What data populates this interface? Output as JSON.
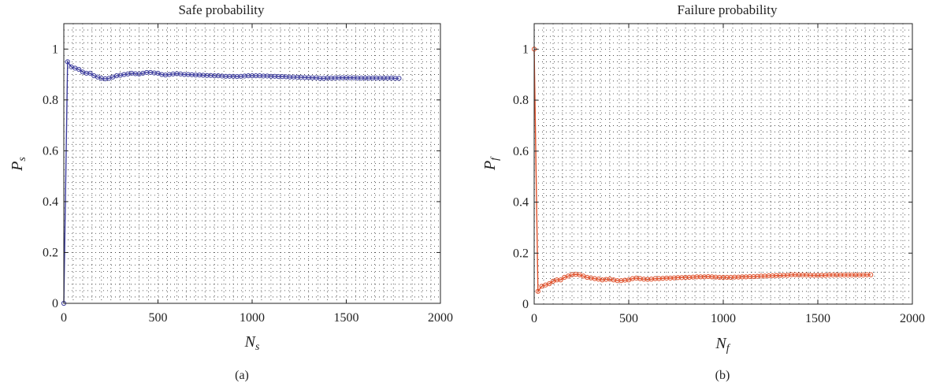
{
  "chart_data": [
    {
      "type": "line",
      "title": "Safe probability",
      "xlabel": "N",
      "xlabel_sub": "s",
      "ylabel": "P",
      "ylabel_sub": "s",
      "caption": "(a)",
      "xlim": [
        0,
        2000
      ],
      "ylim": [
        0,
        1.1
      ],
      "xticks": [
        0,
        500,
        1000,
        1500,
        2000
      ],
      "yticks": [
        0,
        0.2,
        0.4,
        0.6,
        0.8,
        1
      ],
      "grid": true,
      "marker": "circle",
      "color": "#3d3d9e",
      "series": [
        {
          "x": [
            0,
            20,
            40,
            60,
            80,
            100,
            120,
            140,
            160,
            180,
            200,
            220,
            240,
            260,
            280,
            300,
            320,
            340,
            360,
            380,
            400,
            420,
            440,
            460,
            480,
            500,
            520,
            540,
            560,
            580,
            600,
            620,
            640,
            660,
            680,
            700,
            720,
            740,
            760,
            780,
            800,
            820,
            840,
            860,
            880,
            900,
            920,
            940,
            960,
            980,
            1000,
            1020,
            1040,
            1060,
            1080,
            1100,
            1120,
            1140,
            1160,
            1180,
            1200,
            1220,
            1240,
            1260,
            1280,
            1300,
            1320,
            1340,
            1360,
            1380,
            1400,
            1420,
            1440,
            1460,
            1480,
            1500,
            1520,
            1540,
            1560,
            1580,
            1600,
            1620,
            1640,
            1660,
            1680,
            1700,
            1720,
            1740,
            1760,
            1780
          ],
          "y": [
            0,
            0.95,
            0.93,
            0.925,
            0.92,
            0.91,
            0.905,
            0.905,
            0.895,
            0.89,
            0.885,
            0.883,
            0.885,
            0.89,
            0.895,
            0.897,
            0.9,
            0.902,
            0.905,
            0.903,
            0.902,
            0.905,
            0.908,
            0.908,
            0.906,
            0.905,
            0.9,
            0.898,
            0.9,
            0.902,
            0.903,
            0.902,
            0.9,
            0.9,
            0.899,
            0.898,
            0.898,
            0.897,
            0.896,
            0.896,
            0.895,
            0.895,
            0.894,
            0.893,
            0.893,
            0.893,
            0.892,
            0.893,
            0.894,
            0.895,
            0.895,
            0.895,
            0.895,
            0.894,
            0.894,
            0.893,
            0.893,
            0.892,
            0.892,
            0.891,
            0.89,
            0.89,
            0.889,
            0.889,
            0.888,
            0.888,
            0.887,
            0.887,
            0.885,
            0.885,
            0.886,
            0.886,
            0.886,
            0.887,
            0.887,
            0.887,
            0.887,
            0.887,
            0.886,
            0.886,
            0.886,
            0.886,
            0.886,
            0.886,
            0.886,
            0.886,
            0.886,
            0.886,
            0.885,
            0.885
          ]
        }
      ]
    },
    {
      "type": "line",
      "title": "Failure probability",
      "xlabel": "N",
      "xlabel_sub": "f",
      "ylabel": "P",
      "ylabel_sub": "f",
      "caption": "(b)",
      "xlim": [
        0,
        2000
      ],
      "ylim": [
        0,
        1.1
      ],
      "xticks": [
        0,
        500,
        1000,
        1500,
        2000
      ],
      "yticks": [
        0,
        0.2,
        0.4,
        0.6,
        0.8,
        1
      ],
      "grid": true,
      "marker": "circle",
      "color": "#e0502a",
      "series": [
        {
          "x": [
            0,
            20,
            40,
            60,
            80,
            100,
            120,
            140,
            160,
            180,
            200,
            220,
            240,
            260,
            280,
            300,
            320,
            340,
            360,
            380,
            400,
            420,
            440,
            460,
            480,
            500,
            520,
            540,
            560,
            580,
            600,
            620,
            640,
            660,
            680,
            700,
            720,
            740,
            760,
            780,
            800,
            820,
            840,
            860,
            880,
            900,
            920,
            940,
            960,
            980,
            1000,
            1020,
            1040,
            1060,
            1080,
            1100,
            1120,
            1140,
            1160,
            1180,
            1200,
            1220,
            1240,
            1260,
            1280,
            1300,
            1320,
            1340,
            1360,
            1380,
            1400,
            1420,
            1440,
            1460,
            1480,
            1500,
            1520,
            1540,
            1560,
            1580,
            1600,
            1620,
            1640,
            1660,
            1680,
            1700,
            1720,
            1740,
            1760,
            1780
          ],
          "y": [
            1,
            0.05,
            0.07,
            0.075,
            0.08,
            0.09,
            0.095,
            0.095,
            0.105,
            0.11,
            0.115,
            0.117,
            0.115,
            0.11,
            0.105,
            0.103,
            0.1,
            0.098,
            0.095,
            0.097,
            0.098,
            0.095,
            0.092,
            0.092,
            0.094,
            0.095,
            0.1,
            0.102,
            0.1,
            0.098,
            0.097,
            0.098,
            0.1,
            0.1,
            0.101,
            0.102,
            0.102,
            0.103,
            0.104,
            0.104,
            0.105,
            0.105,
            0.106,
            0.107,
            0.107,
            0.107,
            0.108,
            0.107,
            0.106,
            0.105,
            0.105,
            0.105,
            0.105,
            0.106,
            0.106,
            0.107,
            0.107,
            0.108,
            0.108,
            0.109,
            0.11,
            0.11,
            0.111,
            0.111,
            0.112,
            0.112,
            0.113,
            0.113,
            0.115,
            0.115,
            0.114,
            0.114,
            0.114,
            0.113,
            0.113,
            0.113,
            0.113,
            0.113,
            0.114,
            0.114,
            0.114,
            0.114,
            0.114,
            0.114,
            0.114,
            0.114,
            0.114,
            0.114,
            0.115,
            0.115
          ]
        }
      ]
    }
  ]
}
